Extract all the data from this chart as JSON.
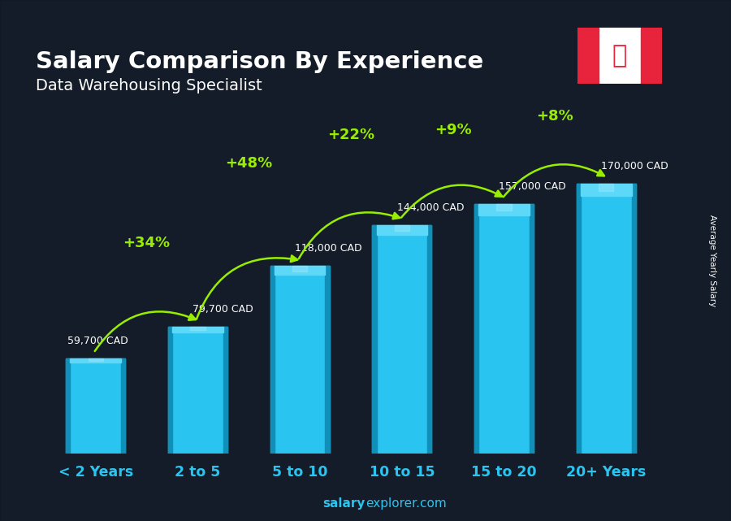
{
  "title": "Salary Comparison By Experience",
  "subtitle": "Data Warehousing Specialist",
  "categories": [
    "< 2 Years",
    "2 to 5",
    "5 to 10",
    "10 to 15",
    "15 to 20",
    "20+ Years"
  ],
  "values": [
    59700,
    79700,
    118000,
    144000,
    157000,
    170000
  ],
  "value_labels": [
    "59,700 CAD",
    "79,700 CAD",
    "118,000 CAD",
    "144,000 CAD",
    "157,000 CAD",
    "170,000 CAD"
  ],
  "pct_changes": [
    "+34%",
    "+48%",
    "+22%",
    "+9%",
    "+8%"
  ],
  "bar_color_main": "#29c4f0",
  "bar_color_light": "#5dd8f8",
  "bar_color_dark": "#1a8aaa",
  "bar_color_side": "#1090b8",
  "background_color": "#1c2533",
  "text_color_white": "#ffffff",
  "text_color_green": "#99ee00",
  "ylabel": "Average Yearly Salary",
  "watermark_bold": "salary",
  "watermark_regular": "explorer.com",
  "watermark_color": "#29c4f0",
  "ylim": [
    0,
    220000
  ],
  "flag_red": "#e8243c",
  "flag_white": "#ffffff"
}
